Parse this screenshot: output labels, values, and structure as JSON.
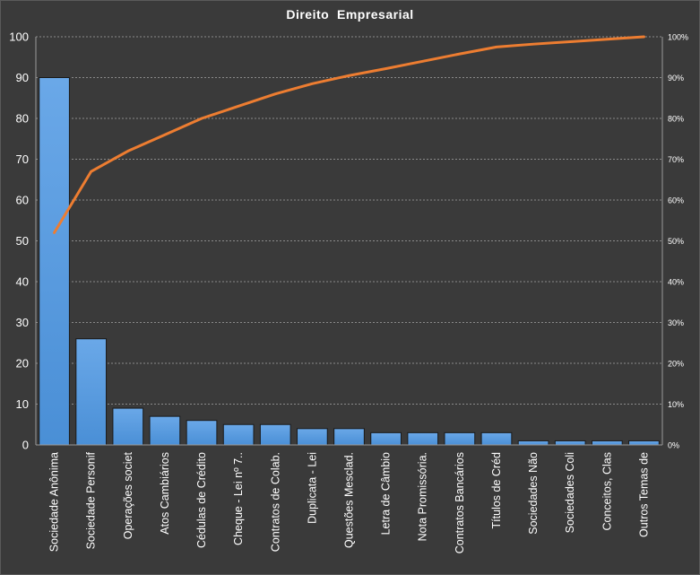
{
  "chart_data": {
    "type": "bar",
    "title": "Direito  Empresarial",
    "categories": [
      "Sociedade Anônima",
      "Sociedade Personif",
      "Operações societ",
      "Atos Cambiários",
      "Cédulas de Crédito",
      "Cheque - Lei nº 7..",
      "Contratos de Colab.",
      "Duplicata - Lei",
      "Questões Mesclad.",
      "Letra de Câmbio",
      "Nota Promissória.",
      "Contratos Bancários",
      "Títulos de Créd",
      "Sociedades Não",
      "Sociedades Coli",
      "Conceitos, Clas",
      "Outros Temas de"
    ],
    "series": [
      {
        "type": "bar",
        "values": [
          90,
          26,
          9,
          7,
          6,
          5,
          5,
          4,
          4,
          3,
          3,
          3,
          3,
          1,
          1,
          1,
          1
        ],
        "color": "#4a8fd6"
      },
      {
        "type": "line",
        "axis": "secondary",
        "values": [
          52,
          67,
          72,
          76,
          80,
          83,
          86,
          88.5,
          90.5,
          92.2,
          94,
          95.8,
          97.5,
          98.2,
          98.8,
          99.4,
          100
        ],
        "color": "#ed7d31"
      }
    ],
    "ylim": [
      0,
      100
    ],
    "yticks": [
      0,
      10,
      20,
      30,
      40,
      50,
      60,
      70,
      80,
      90,
      100
    ],
    "y2lim": [
      0,
      100
    ],
    "y2ticks": [
      "0%",
      "10%",
      "20%",
      "30%",
      "40%",
      "50%",
      "60%",
      "70%",
      "80%",
      "90%",
      "100%"
    ],
    "grid": true,
    "legend": "none",
    "colors": {
      "background": "#3a3a3a",
      "bar": "#4a8fd6",
      "line": "#ed7d31",
      "grid": "#8a8a8a",
      "text": "#ffffff"
    }
  }
}
